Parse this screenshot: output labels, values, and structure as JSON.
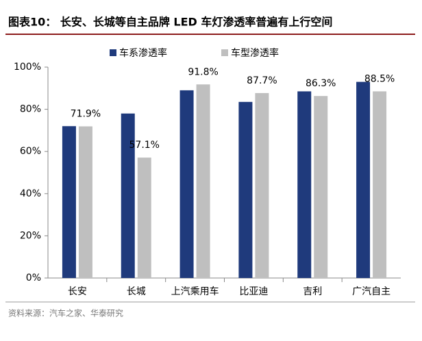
{
  "chart_data": {
    "type": "bar",
    "title": "图表10：  长安、长城等自主品牌 LED 车灯渗透率普遍有上行空间",
    "source": "资料来源：汽车之家、华泰研究",
    "categories": [
      "长安",
      "长城",
      "上汽乘用车",
      "比亚迪",
      "吉利",
      "广汽自主"
    ],
    "series": [
      {
        "name": "车系渗透率",
        "color": "#1f3a7c",
        "values": [
          72,
          78,
          89,
          83.5,
          88.5,
          93
        ]
      },
      {
        "name": "车型渗透率",
        "color": "#bfbfbf",
        "values": [
          71.9,
          57.1,
          91.8,
          87.7,
          86.3,
          88.5
        ],
        "value_labels": [
          "71.9%",
          "57.1%",
          "91.8%",
          "87.7%",
          "86.3%",
          "88.5%"
        ]
      }
    ],
    "ylim": [
      0,
      100
    ],
    "yticks": [
      {
        "value": 0,
        "label": "0%"
      },
      {
        "value": 20,
        "label": "20%"
      },
      {
        "value": 40,
        "label": "40%"
      },
      {
        "value": 60,
        "label": "60%"
      },
      {
        "value": 80,
        "label": "80%"
      },
      {
        "value": 100,
        "label": "100%"
      }
    ],
    "grid": false,
    "legend": "top"
  }
}
